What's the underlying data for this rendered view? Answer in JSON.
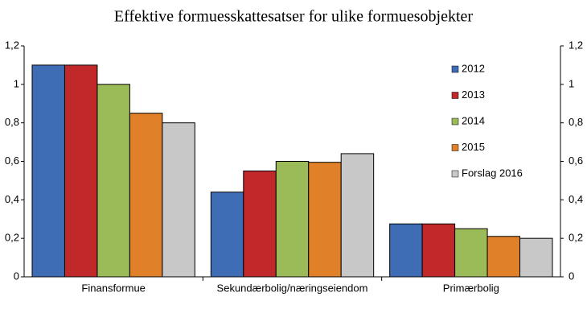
{
  "chart_data": {
    "type": "bar",
    "title": "Effektive formuesskattesatser for ulike formuesobjekter",
    "categories": [
      "Finansformue",
      "Sekundærbolig/næringseiendom",
      "Primærbolig"
    ],
    "series": [
      {
        "name": "2012",
        "color": "#3e6db5",
        "values": [
          1.1,
          0.44,
          0.275
        ]
      },
      {
        "name": "2013",
        "color": "#c0282a",
        "values": [
          1.1,
          0.55,
          0.275
        ]
      },
      {
        "name": "2014",
        "color": "#9bbb59",
        "values": [
          1.0,
          0.6,
          0.25
        ]
      },
      {
        "name": "2015",
        "color": "#e0812a",
        "values": [
          0.85,
          0.595,
          0.21
        ]
      },
      {
        "name": "Forslag 2016",
        "color": "#c8c8c8",
        "values": [
          0.8,
          0.64,
          0.2
        ]
      }
    ],
    "ylim": [
      0,
      1.2
    ],
    "yticks": [
      0,
      {
        "value": 0.2,
        "label": "0,2"
      },
      {
        "value": 0.4,
        "label": "0,4"
      },
      {
        "value": 0.6,
        "label": "0,6"
      },
      {
        "value": 0.8,
        "label": "0,8"
      },
      1,
      {
        "value": 1.2,
        "label": "1,2"
      }
    ],
    "y2lim": [
      0,
      1.2
    ],
    "y2ticks": [
      0,
      {
        "value": 0.2,
        "label": "0,2"
      },
      {
        "value": 0.4,
        "label": "0,4"
      },
      {
        "value": 0.6,
        "label": "0,6"
      },
      {
        "value": 0.8,
        "label": "0,8"
      },
      1,
      {
        "value": 1.2,
        "label": "1,2"
      }
    ],
    "legend": "right"
  }
}
